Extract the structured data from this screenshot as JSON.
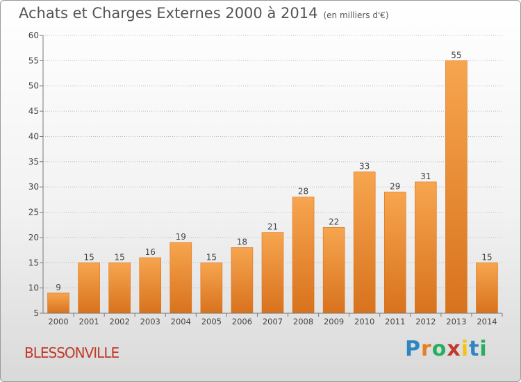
{
  "header": {
    "title": "Achats et Charges Externes 2000 à 2014",
    "unit": "(en milliers d'€)"
  },
  "commune": "BLESSONVILLE",
  "brand": {
    "letters": [
      "P",
      "r",
      "o",
      "x",
      "i",
      "t",
      "i"
    ],
    "colors": [
      "#2e86c1",
      "#e67e22",
      "#27ae60",
      "#c0392b",
      "#f1c40f",
      "#2e86c1",
      "#27ae60"
    ]
  },
  "colors": {
    "bar": "#f0923a",
    "bar_dark": "#d9731c",
    "grid": "#bbbbbb"
  },
  "chart_data": {
    "type": "bar",
    "title": "Achats et Charges Externes 2000 à 2014",
    "categories": [
      "2000",
      "2001",
      "2002",
      "2003",
      "2004",
      "2005",
      "2006",
      "2007",
      "2008",
      "2009",
      "2010",
      "2011",
      "2012",
      "2013",
      "2014"
    ],
    "values": [
      9,
      15,
      15,
      16,
      19,
      15,
      18,
      21,
      28,
      22,
      33,
      29,
      31,
      55,
      15
    ],
    "ylim": [
      5,
      60
    ],
    "yticks": [
      5,
      10,
      15,
      20,
      25,
      30,
      35,
      40,
      45,
      50,
      55,
      60
    ],
    "grid": true,
    "xlabel": "",
    "ylabel": ""
  }
}
